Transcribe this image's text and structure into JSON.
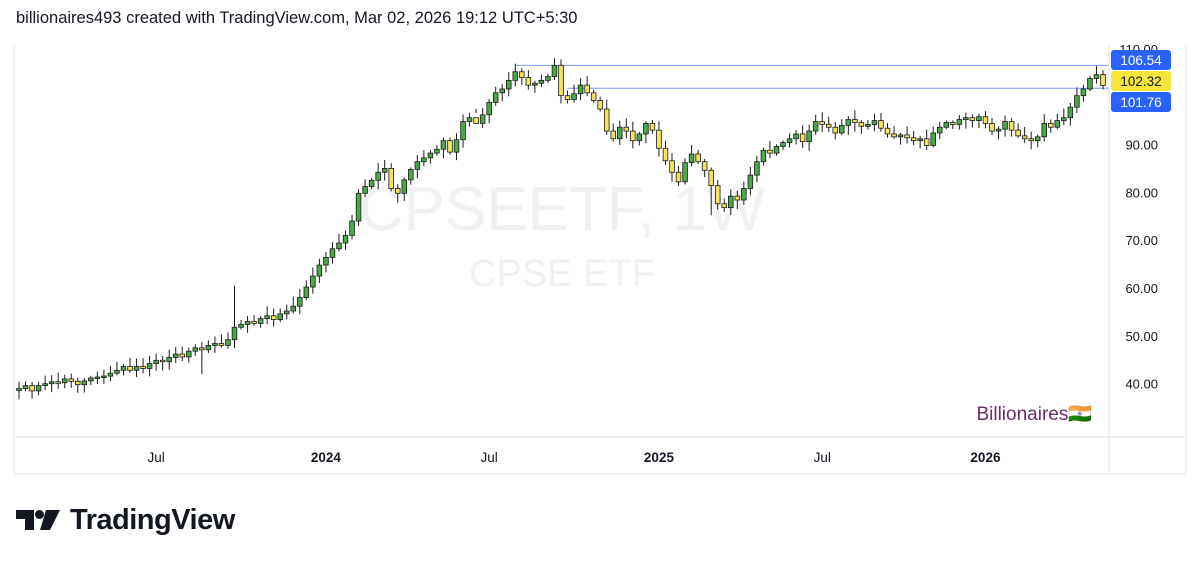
{
  "header": {
    "text": "billionaires493 created with TradingView.com, Mar 02, 2026 19:12 UTC+5:30"
  },
  "footer": {
    "brand": "TradingView"
  },
  "colors": {
    "up": "#4aa84a",
    "down": "#f5e35c",
    "outline": "#1a1a1a",
    "blue_label": "#2962ff",
    "yellow_label": "#f7e53b",
    "line": "#7c9cff",
    "signature": "#6e2a6e",
    "watermark": "#f0f1f3",
    "grid_border": "#e0e3eb"
  },
  "chart_data": {
    "type": "candlestick",
    "symbol_watermark": "CPSEETF, 1W",
    "name_watermark": "CPSE ETF",
    "signature": "Billionaires🇮🇳",
    "interval": "1W",
    "y_axis": {
      "min": 32,
      "max": 111,
      "ticks": [
        "110.00",
        "90.00",
        "80.00",
        "70.00",
        "60.00",
        "50.00",
        "40.00"
      ]
    },
    "x_axis": {
      "labels": [
        {
          "text": "Jul",
          "bold": false,
          "index": 21
        },
        {
          "text": "2024",
          "bold": true,
          "index": 47
        },
        {
          "text": "Jul",
          "bold": false,
          "index": 72
        },
        {
          "text": "2025",
          "bold": true,
          "index": 98
        },
        {
          "text": "Jul",
          "bold": false,
          "index": 123
        },
        {
          "text": "2026",
          "bold": true,
          "index": 148
        }
      ]
    },
    "price_labels": [
      {
        "value": 106.54,
        "text": "106.54",
        "style": "blue"
      },
      {
        "value": 102.32,
        "text": "102.32",
        "style": "yellow"
      },
      {
        "value": 101.76,
        "text": "101.76",
        "style": "blue"
      }
    ],
    "horizontal_lines": [
      {
        "value": 106.54,
        "from_index": 76
      },
      {
        "value": 101.76,
        "from_index": 84
      }
    ],
    "closes": [
      39.0,
      39.6,
      38.5,
      39.6,
      40.0,
      40.4,
      40.2,
      41.0,
      40.5,
      39.8,
      40.6,
      41.2,
      41.4,
      41.6,
      42.2,
      42.8,
      43.6,
      42.8,
      43.6,
      43.2,
      44.2,
      44.9,
      44.6,
      45.5,
      46.2,
      45.6,
      46.8,
      47.5,
      47.1,
      48.0,
      48.4,
      48.0,
      49.2,
      51.8,
      52.4,
      53.0,
      52.6,
      53.6,
      54.2,
      53.4,
      54.6,
      55.2,
      56.2,
      58.0,
      60.2,
      62.5,
      64.8,
      66.4,
      68.2,
      69.4,
      71.0,
      74.0,
      79.8,
      81.2,
      82.5,
      84.2,
      85.0,
      80.8,
      79.8,
      82.6,
      84.8,
      86.4,
      87.2,
      88.2,
      89.0,
      90.8,
      88.4,
      91.0,
      94.8,
      95.6,
      94.4,
      96.2,
      98.8,
      100.8,
      101.6,
      103.4,
      105.2,
      104.0,
      102.4,
      102.8,
      103.4,
      104.2,
      106.54,
      100.2,
      99.4,
      100.6,
      102.4,
      100.8,
      99.2,
      97.4,
      92.8,
      91.2,
      93.6,
      92.8,
      90.8,
      92.2,
      94.4,
      93.0,
      89.2,
      86.6,
      84.2,
      82.2,
      86.2,
      88.0,
      86.4,
      84.6,
      81.4,
      77.6,
      76.8,
      79.2,
      78.4,
      80.8,
      83.6,
      86.4,
      88.8,
      88.2,
      89.6,
      90.4,
      91.2,
      92.2,
      90.6,
      92.8,
      94.8,
      94.2,
      93.6,
      92.4,
      94.0,
      95.2,
      94.6,
      93.8,
      94.2,
      95.0,
      93.4,
      92.2,
      91.6,
      92.0,
      91.4,
      90.8,
      91.2,
      89.8,
      92.4,
      93.6,
      94.6,
      94.2,
      95.2,
      95.6,
      95.0,
      95.8,
      94.4,
      92.8,
      93.2,
      94.8,
      93.0,
      91.8,
      91.2,
      90.8,
      91.6,
      94.4,
      93.6,
      95.0,
      95.6,
      97.8,
      100.2,
      101.6,
      103.8,
      104.6,
      102.32
    ]
  }
}
